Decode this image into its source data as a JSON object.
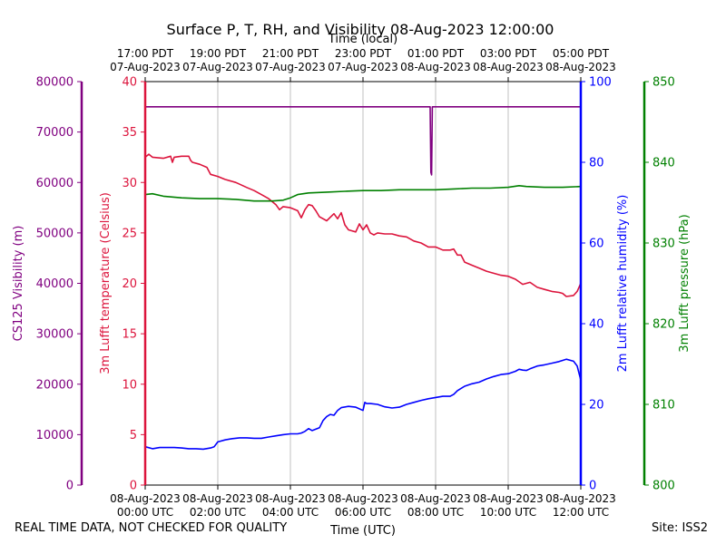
{
  "chart_data": {
    "type": "line",
    "title": "Surface P, T, RH, and Visibility 08-Aug-2023 12:00:00",
    "top_axis_label": "Time (local)",
    "xlabel": "Time (UTC)",
    "x_range_hours": [
      0,
      12
    ],
    "bottom_ticks": [
      {
        "hour": 0,
        "line1": "08-Aug-2023",
        "line2": "00:00 UTC"
      },
      {
        "hour": 2,
        "line1": "08-Aug-2023",
        "line2": "02:00 UTC"
      },
      {
        "hour": 4,
        "line1": "08-Aug-2023",
        "line2": "04:00 UTC"
      },
      {
        "hour": 6,
        "line1": "08-Aug-2023",
        "line2": "06:00 UTC"
      },
      {
        "hour": 8,
        "line1": "08-Aug-2023",
        "line2": "08:00 UTC"
      },
      {
        "hour": 10,
        "line1": "08-Aug-2023",
        "line2": "10:00 UTC"
      },
      {
        "hour": 12,
        "line1": "08-Aug-2023",
        "line2": "12:00 UTC"
      }
    ],
    "top_ticks": [
      {
        "hour": 0,
        "line1": "17:00 PDT",
        "line2": "07-Aug-2023"
      },
      {
        "hour": 2,
        "line1": "19:00 PDT",
        "line2": "07-Aug-2023"
      },
      {
        "hour": 4,
        "line1": "21:00 PDT",
        "line2": "07-Aug-2023"
      },
      {
        "hour": 6,
        "line1": "23:00 PDT",
        "line2": "07-Aug-2023"
      },
      {
        "hour": 8,
        "line1": "01:00 PDT",
        "line2": "08-Aug-2023"
      },
      {
        "hour": 10,
        "line1": "03:00 PDT",
        "line2": "08-Aug-2023"
      },
      {
        "hour": 12,
        "line1": "05:00 PDT",
        "line2": "08-Aug-2023"
      }
    ],
    "axes": {
      "visibility": {
        "label": "CS125 Visibility (m)",
        "range": [
          0,
          80000
        ],
        "ticks": [
          0,
          10000,
          20000,
          30000,
          40000,
          50000,
          60000,
          70000,
          80000
        ],
        "color": "#800080"
      },
      "temperature": {
        "label": "3m Lufft temperature (Celsius)",
        "range": [
          0,
          40
        ],
        "ticks": [
          0,
          5,
          10,
          15,
          20,
          25,
          30,
          35,
          40
        ],
        "color": "#dc143c"
      },
      "humidity": {
        "label": "2m Lufft relative humidity (%)",
        "range": [
          0,
          100
        ],
        "ticks": [
          0,
          20,
          40,
          60,
          80,
          100
        ],
        "color": "#0000ff"
      },
      "pressure": {
        "label": "3m Lufft pressure (hPa)",
        "range": [
          800,
          850
        ],
        "ticks": [
          800,
          810,
          820,
          830,
          840,
          850
        ],
        "color": "#008000"
      }
    },
    "series": [
      {
        "name": "Visibility",
        "axis": "visibility",
        "color": "#800080",
        "x": [
          0,
          7.85,
          7.87,
          7.89,
          7.91,
          7.93,
          12
        ],
        "y": [
          75000,
          75000,
          62000,
          61500,
          75000,
          75000,
          75000
        ]
      },
      {
        "name": "Temperature",
        "axis": "temperature",
        "color": "#dc143c",
        "x": [
          0,
          0.1,
          0.2,
          0.5,
          0.7,
          0.75,
          0.8,
          1.0,
          1.2,
          1.25,
          1.3,
          1.5,
          1.7,
          1.8,
          2.0,
          2.2,
          2.5,
          2.8,
          3.0,
          3.2,
          3.4,
          3.6,
          3.7,
          3.8,
          4.0,
          4.2,
          4.3,
          4.4,
          4.5,
          4.6,
          4.7,
          4.8,
          5.0,
          5.2,
          5.3,
          5.4,
          5.5,
          5.6,
          5.8,
          5.9,
          6.0,
          6.1,
          6.2,
          6.3,
          6.4,
          6.6,
          6.8,
          7.0,
          7.2,
          7.4,
          7.6,
          7.8,
          8.0,
          8.2,
          8.4,
          8.5,
          8.6,
          8.7,
          8.8,
          9.0,
          9.2,
          9.4,
          9.6,
          9.8,
          10.0,
          10.2,
          10.4,
          10.6,
          10.8,
          11.0,
          11.2,
          11.4,
          11.5,
          11.6,
          11.8,
          11.9,
          12.0
        ],
        "y": [
          32.5,
          32.8,
          32.5,
          32.4,
          32.6,
          32.0,
          32.5,
          32.6,
          32.6,
          32.2,
          32.0,
          31.8,
          31.5,
          30.8,
          30.6,
          30.3,
          30.0,
          29.5,
          29.2,
          28.8,
          28.4,
          27.8,
          27.3,
          27.6,
          27.5,
          27.2,
          26.5,
          27.3,
          27.8,
          27.7,
          27.2,
          26.6,
          26.2,
          26.9,
          26.4,
          27.0,
          25.8,
          25.3,
          25.1,
          25.9,
          25.3,
          25.8,
          25.0,
          24.8,
          25.0,
          24.9,
          24.9,
          24.7,
          24.6,
          24.2,
          24.0,
          23.6,
          23.6,
          23.3,
          23.3,
          23.4,
          22.8,
          22.8,
          22.1,
          21.8,
          21.5,
          21.2,
          21.0,
          20.8,
          20.7,
          20.4,
          19.9,
          20.1,
          19.6,
          19.4,
          19.2,
          19.1,
          19.0,
          18.7,
          18.8,
          19.2,
          20.0
        ]
      },
      {
        "name": "Relative humidity",
        "axis": "humidity",
        "color": "#0000ff",
        "x": [
          0,
          0.2,
          0.4,
          0.6,
          0.8,
          1.0,
          1.2,
          1.4,
          1.6,
          1.8,
          1.9,
          2.0,
          2.2,
          2.4,
          2.6,
          2.8,
          3.0,
          3.2,
          3.4,
          3.6,
          3.8,
          4.0,
          4.2,
          4.3,
          4.4,
          4.5,
          4.6,
          4.8,
          4.9,
          5.0,
          5.1,
          5.2,
          5.3,
          5.4,
          5.6,
          5.8,
          6.0,
          6.05,
          6.1,
          6.2,
          6.4,
          6.6,
          6.8,
          7.0,
          7.2,
          7.4,
          7.6,
          7.8,
          8.0,
          8.2,
          8.4,
          8.5,
          8.6,
          8.8,
          9.0,
          9.2,
          9.4,
          9.6,
          9.8,
          10.0,
          10.2,
          10.3,
          10.4,
          10.5,
          10.6,
          10.8,
          11.0,
          11.2,
          11.4,
          11.6,
          11.8,
          11.9,
          12.0
        ],
        "y": [
          9.5,
          9.0,
          9.3,
          9.3,
          9.3,
          9.2,
          9.0,
          9.0,
          8.9,
          9.2,
          9.5,
          10.7,
          11.2,
          11.5,
          11.7,
          11.7,
          11.6,
          11.6,
          11.9,
          12.2,
          12.5,
          12.7,
          12.7,
          12.9,
          13.3,
          14.0,
          13.5,
          14.2,
          16.0,
          17.0,
          17.5,
          17.3,
          18.5,
          19.2,
          19.5,
          19.3,
          18.5,
          20.5,
          20.2,
          20.2,
          20.0,
          19.4,
          19.1,
          19.3,
          20.0,
          20.5,
          21.0,
          21.4,
          21.7,
          22.0,
          22.0,
          22.5,
          23.4,
          24.5,
          25.1,
          25.5,
          26.3,
          26.9,
          27.4,
          27.6,
          28.2,
          28.7,
          28.5,
          28.4,
          28.8,
          29.5,
          29.8,
          30.2,
          30.6,
          31.2,
          30.7,
          29.5,
          26.0
        ]
      },
      {
        "name": "Pressure",
        "axis": "pressure",
        "color": "#008000",
        "x": [
          0,
          0.2,
          0.5,
          1.0,
          1.5,
          2.0,
          2.5,
          3.0,
          3.5,
          3.8,
          4.0,
          4.2,
          4.5,
          5.0,
          5.5,
          6.0,
          6.5,
          7.0,
          7.5,
          8.0,
          8.5,
          9.0,
          9.5,
          10.0,
          10.3,
          10.5,
          11.0,
          11.5,
          12.0
        ],
        "y": [
          836.0,
          836.1,
          835.8,
          835.6,
          835.5,
          835.5,
          835.4,
          835.2,
          835.2,
          835.3,
          835.6,
          836.0,
          836.2,
          836.3,
          836.4,
          836.5,
          836.5,
          836.6,
          836.6,
          836.6,
          836.7,
          836.8,
          836.8,
          836.9,
          837.1,
          837.0,
          836.9,
          836.9,
          837.0
        ]
      }
    ]
  },
  "footer": {
    "left_note": "REAL TIME DATA, NOT CHECKED FOR QUALITY",
    "site": "Site: ISS2"
  }
}
